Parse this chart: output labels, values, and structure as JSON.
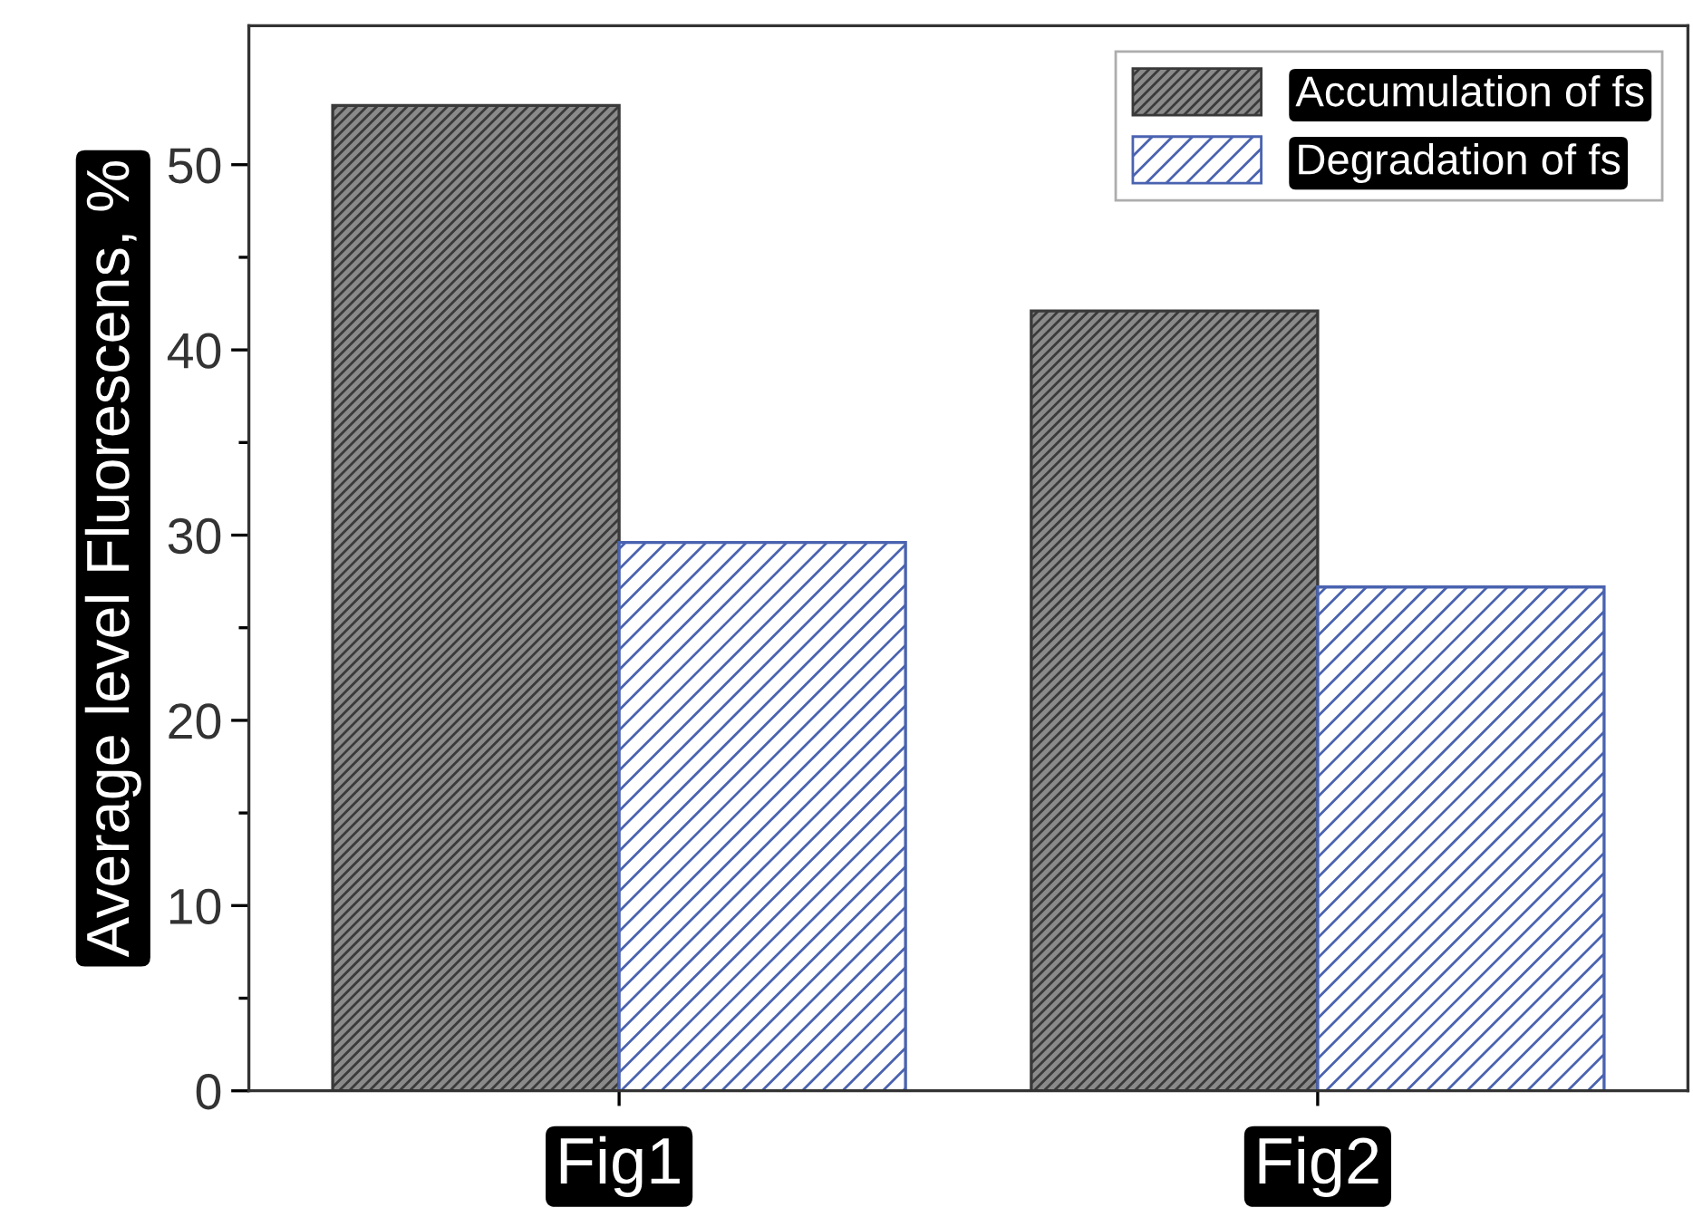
{
  "chart_data": {
    "type": "bar",
    "categories": [
      "Fig1",
      "Fig2"
    ],
    "series": [
      {
        "name": "Accumulation of fs",
        "color": "#3a3a3a",
        "values": [
          53.2,
          42.1
        ]
      },
      {
        "name": "Degradation of fs",
        "color": "#4a63b0",
        "values": [
          29.6,
          27.2
        ]
      }
    ],
    "ylabel": "Average level Fluorescens, %",
    "ylim": [
      0,
      57.5
    ],
    "yticks": [
      0,
      10,
      20,
      30,
      40,
      50
    ],
    "grid": false,
    "legend": "top right"
  }
}
